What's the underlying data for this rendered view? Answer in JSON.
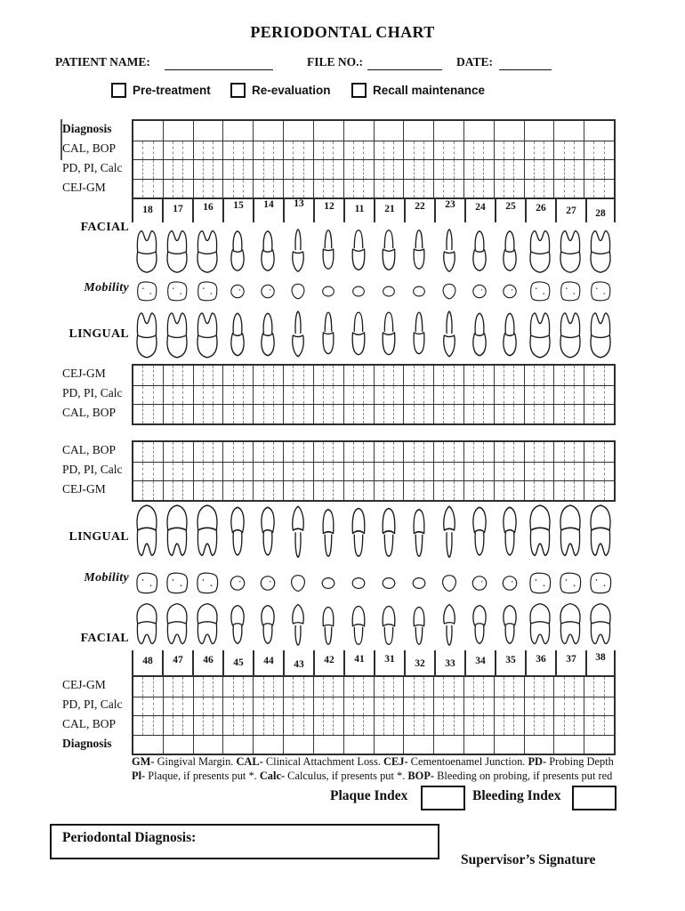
{
  "title": "PERIODONTAL CHART",
  "header_fields": [
    {
      "label": "PATIENT NAME:",
      "value": ""
    },
    {
      "label": "FILE NO.:",
      "value": ""
    },
    {
      "label": "DATE:",
      "value": ""
    }
  ],
  "checkboxes": [
    {
      "label": "Pre-treatment",
      "checked": false
    },
    {
      "label": "Re-evaluation",
      "checked": false
    },
    {
      "label": "Recall maintenance",
      "checked": false
    }
  ],
  "upper_chart": {
    "top_rows": [
      {
        "label": "Diagnosis",
        "bold": true,
        "subdivided": false
      },
      {
        "label": "CAL, BOP",
        "bold": false,
        "subdivided": true
      },
      {
        "label": "PD, PI, Calc",
        "bold": false,
        "subdivided": true
      },
      {
        "label": "CEJ-GM",
        "bold": false,
        "subdivided": true
      }
    ],
    "side_labels": [
      {
        "label": "FACIAL",
        "italic": false
      },
      {
        "label": "Mobility",
        "italic": true
      },
      {
        "label": "LINGUAL",
        "italic": false
      }
    ],
    "teeth_numbers": [
      "18",
      "17",
      "16",
      "15",
      "14",
      "13",
      "12",
      "11",
      "21",
      "22",
      "23",
      "24",
      "25",
      "26",
      "27",
      "28"
    ],
    "bottom_rows": [
      {
        "label": "CEJ-GM",
        "bold": false,
        "subdivided": true
      },
      {
        "label": "PD, PI, Calc",
        "bold": false,
        "subdivided": true
      },
      {
        "label": "CAL, BOP",
        "bold": false,
        "subdivided": true
      }
    ]
  },
  "lower_chart": {
    "top_rows": [
      {
        "label": "CAL, BOP",
        "bold": false,
        "subdivided": true
      },
      {
        "label": "PD, PI, Calc",
        "bold": false,
        "subdivided": true
      },
      {
        "label": "CEJ-GM",
        "bold": false,
        "subdivided": true
      }
    ],
    "side_labels": [
      {
        "label": "LINGUAL",
        "italic": false
      },
      {
        "label": "Mobility",
        "italic": true
      },
      {
        "label": "FACIAL",
        "italic": false
      }
    ],
    "teeth_numbers": [
      "48",
      "47",
      "46",
      "45",
      "44",
      "43",
      "42",
      "41",
      "31",
      "32",
      "33",
      "34",
      "35",
      "36",
      "37",
      "38"
    ],
    "bottom_rows": [
      {
        "label": "CEJ-GM",
        "bold": false,
        "subdivided": true
      },
      {
        "label": "PD, PI, Calc",
        "bold": false,
        "subdivided": true
      },
      {
        "label": "CAL, BOP",
        "bold": false,
        "subdivided": true
      },
      {
        "label": "Diagnosis",
        "bold": true,
        "subdivided": false
      }
    ]
  },
  "legend": {
    "lines": [
      [
        {
          "t": "GM-",
          "b": true
        },
        {
          "t": " Gingival Margin. "
        },
        {
          "t": "CAL-",
          "b": true
        },
        {
          "t": " Clinical Attachment Loss. "
        },
        {
          "t": "CEJ-",
          "b": true
        },
        {
          "t": " Cementoenamel Junction. "
        },
        {
          "t": "PD-",
          "b": true
        },
        {
          "t": " Probing Depth"
        }
      ],
      [
        {
          "t": "Pl-",
          "b": true
        },
        {
          "t": " Plaque, if presents put *. "
        },
        {
          "t": "Calc-",
          "b": true
        },
        {
          "t": " Calculus, if presents put *.  "
        },
        {
          "t": "BOP-",
          "b": true
        },
        {
          "t": " Bleeding on probing, if presents put red"
        }
      ]
    ]
  },
  "indices": [
    {
      "label": "Plaque Index",
      "value": ""
    },
    {
      "label": "Bleeding Index",
      "value": ""
    }
  ],
  "diagnosis_box": {
    "label": "Periodontal Diagnosis:",
    "value": ""
  },
  "signature_label": "Supervisor’s Signature",
  "colors": {
    "ink": "#111111",
    "grid_line": "#2e2e2e",
    "dashed_line": "#8a8a8a"
  }
}
